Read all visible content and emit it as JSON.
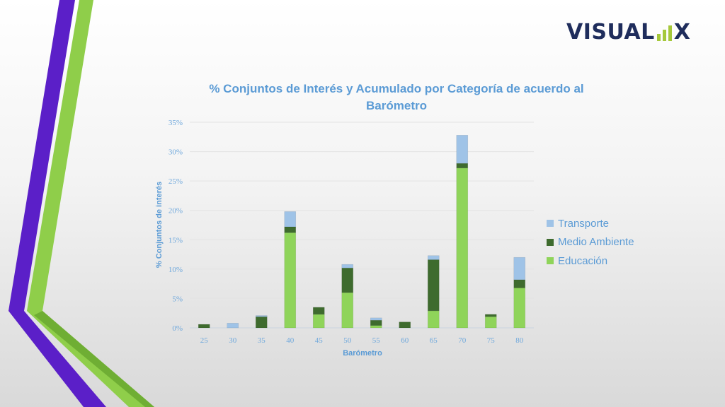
{
  "logo": {
    "prefix": "VISUAL",
    "suffix": "X"
  },
  "colors": {
    "purple": "#5b1fc8",
    "green": "#8fce4a",
    "transporte": "#9fc3e7",
    "medio_ambiente": "#3e6b2e",
    "educacion": "#8fd45a"
  },
  "chart_data": {
    "type": "bar",
    "stacked": true,
    "title": "% Conjuntos de Interés y Acumulado por Categoría de acuerdo al Barómetro",
    "xlabel": "Barómetro",
    "ylabel": "% Conjuntos de interés",
    "ylim": [
      0,
      35
    ],
    "yticks": [
      "0%",
      "5%",
      "10%",
      "15%",
      "20%",
      "25%",
      "30%",
      "35%"
    ],
    "grid": true,
    "legend_position": "right",
    "categories": [
      "25",
      "30",
      "35",
      "40",
      "45",
      "50",
      "55",
      "60",
      "65",
      "70",
      "75",
      "80"
    ],
    "series": [
      {
        "name": "Educación",
        "color": "#8fd45a",
        "values": [
          0,
          0,
          0,
          16.2,
          2.3,
          6.0,
          0.4,
          0,
          2.9,
          27.2,
          1.9,
          6.8
        ]
      },
      {
        "name": "Medio Ambiente",
        "color": "#3e6b2e",
        "values": [
          0.6,
          0,
          1.9,
          1.0,
          1.2,
          4.2,
          0.9,
          1.0,
          8.7,
          0.8,
          0.4,
          1.4
        ]
      },
      {
        "name": "Transporte",
        "color": "#9fc3e7",
        "values": [
          0,
          0.8,
          0.2,
          2.6,
          0,
          0.6,
          0.4,
          0,
          0.7,
          4.8,
          0,
          3.8
        ]
      }
    ],
    "legend_order": [
      "Transporte",
      "Medio Ambiente",
      "Educación"
    ]
  }
}
